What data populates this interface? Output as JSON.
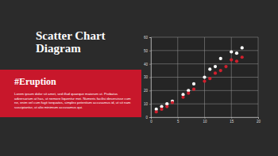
{
  "slide": {
    "title": [
      "Scatter Chart",
      "Diagram"
    ],
    "heading": "#Eruption",
    "body": "Lorem ipsum dolor sit amet, sed illud quaeque maiorum ut. Probatus adversarium at has, ut nemore liquentur mei. Numeris facilisi deseruisse cum ne, enim vel cum fugit torquatos, simplex petentium accusamus id, ut sit nam suscipiantur, ut alio minimum accusamus qui."
  },
  "chart_data": {
    "type": "scatter",
    "series": [
      {
        "color": "#ffffff",
        "marker": "circle",
        "x": [
          1,
          2,
          3,
          4,
          6,
          7,
          8,
          10,
          11,
          12,
          13,
          15,
          16,
          17
        ],
        "values": [
          6,
          8,
          10,
          12,
          17,
          20,
          25,
          30,
          36,
          38,
          44,
          49,
          48,
          52
        ]
      },
      {
        "color": "#d0202e",
        "marker": "circle",
        "x": [
          1,
          2,
          3,
          4,
          6,
          7,
          8,
          10,
          11,
          12,
          13,
          14,
          15,
          16,
          17
        ],
        "values": [
          4,
          6,
          8,
          11,
          15,
          18,
          21,
          27,
          29,
          33,
          35,
          38,
          43,
          42,
          45
        ]
      }
    ],
    "xlim": [
      0,
      20
    ],
    "xticks": [
      0,
      5,
      10,
      15,
      20
    ],
    "ylim": [
      0,
      60
    ],
    "yticks": [
      0,
      10,
      20,
      30,
      40,
      50,
      60
    ],
    "grid": true
  }
}
